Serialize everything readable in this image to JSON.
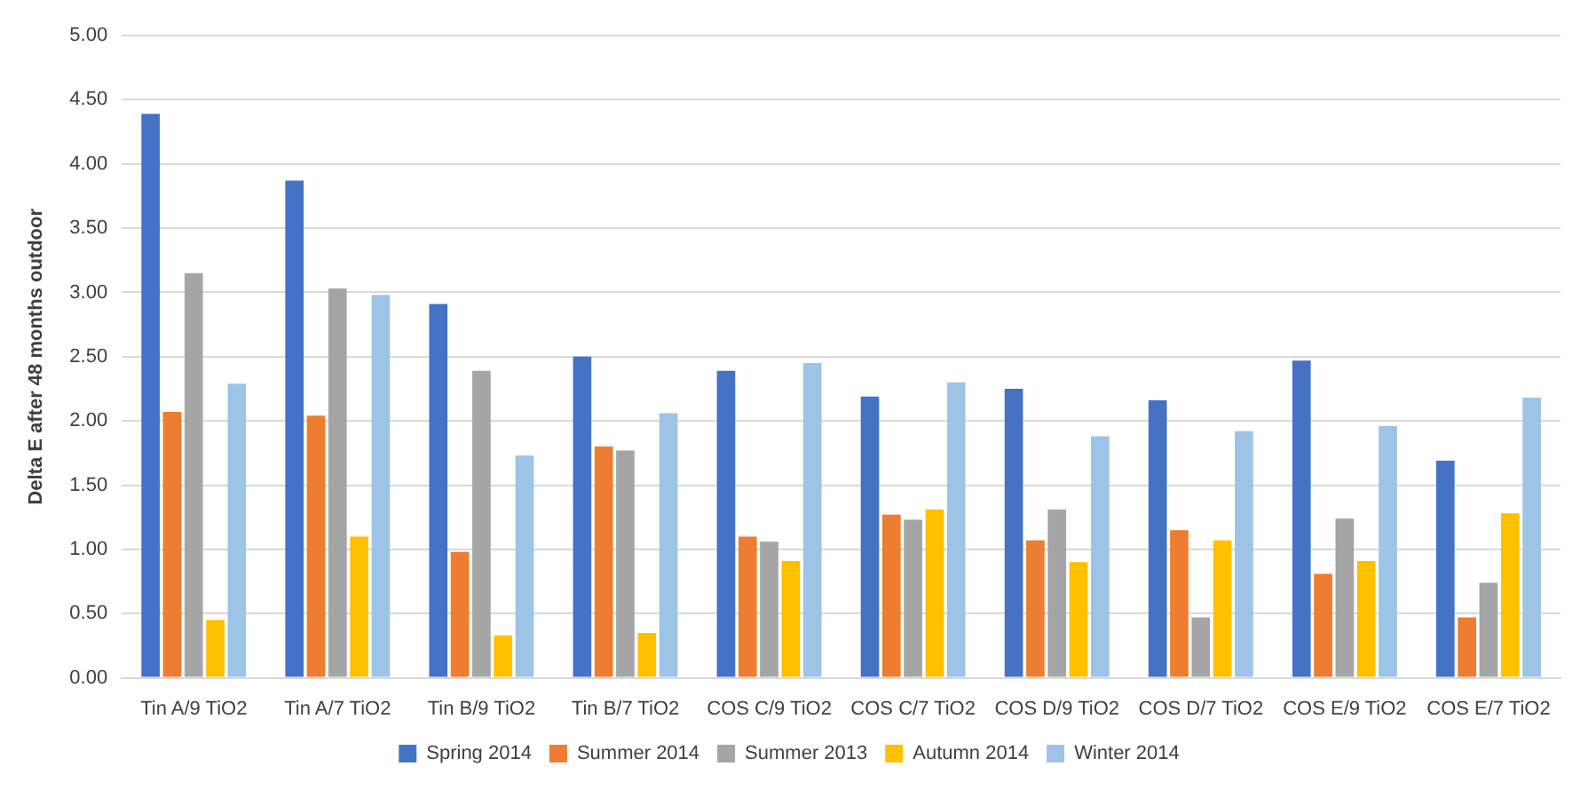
{
  "chart_data": {
    "type": "bar",
    "ylabel": "Delta E after 48 months outdoor",
    "categories": [
      "Tin A/9 TiO2",
      "Tin A/7 TiO2",
      "Tin B/9 TiO2",
      "Tin B/7 TiO2",
      "COS C/9 TiO2",
      "COS C/7 TiO2",
      "COS D/9 TiO2",
      "COS D/7 TiO2",
      "COS E/9 TiO2",
      "COS E/7 TiO2"
    ],
    "series": [
      {
        "name": "Spring 2014",
        "color": "#4472c4",
        "values": [
          4.39,
          3.87,
          2.91,
          2.5,
          2.39,
          2.19,
          2.25,
          2.16,
          2.47,
          1.69
        ]
      },
      {
        "name": "Summer 2014",
        "color": "#ed7d31",
        "values": [
          2.07,
          2.04,
          0.98,
          1.8,
          1.1,
          1.27,
          1.07,
          1.15,
          0.81,
          0.47
        ]
      },
      {
        "name": "Summer 2013",
        "color": "#a5a5a5",
        "values": [
          3.15,
          3.03,
          2.39,
          1.77,
          1.06,
          1.23,
          1.31,
          0.47,
          1.24,
          0.74
        ]
      },
      {
        "name": "Autumn 2014",
        "color": "#ffc000",
        "values": [
          0.45,
          1.1,
          0.33,
          0.35,
          0.91,
          1.31,
          0.9,
          1.07,
          0.91,
          1.28
        ]
      },
      {
        "name": "Winter 2014",
        "color": "#9dc3e6",
        "values": [
          2.29,
          2.98,
          1.73,
          2.06,
          2.45,
          2.3,
          1.88,
          1.92,
          1.96,
          2.18
        ]
      }
    ],
    "ylim": [
      0,
      5
    ],
    "yticks": [
      {
        "value": 0,
        "label": "0.00"
      },
      {
        "value": 0.5,
        "label": "0.50"
      },
      {
        "value": 1,
        "label": "1.00"
      },
      {
        "value": 1.5,
        "label": "1.50"
      },
      {
        "value": 2,
        "label": "2.00"
      },
      {
        "value": 2.5,
        "label": "2.50"
      },
      {
        "value": 3,
        "label": "3.00"
      },
      {
        "value": 3.5,
        "label": "3.50"
      },
      {
        "value": 4,
        "label": "4.00"
      },
      {
        "value": 4.5,
        "label": "4.50"
      },
      {
        "value": 5,
        "label": "5.00"
      }
    ],
    "grid": "y",
    "legend": "bottom"
  }
}
